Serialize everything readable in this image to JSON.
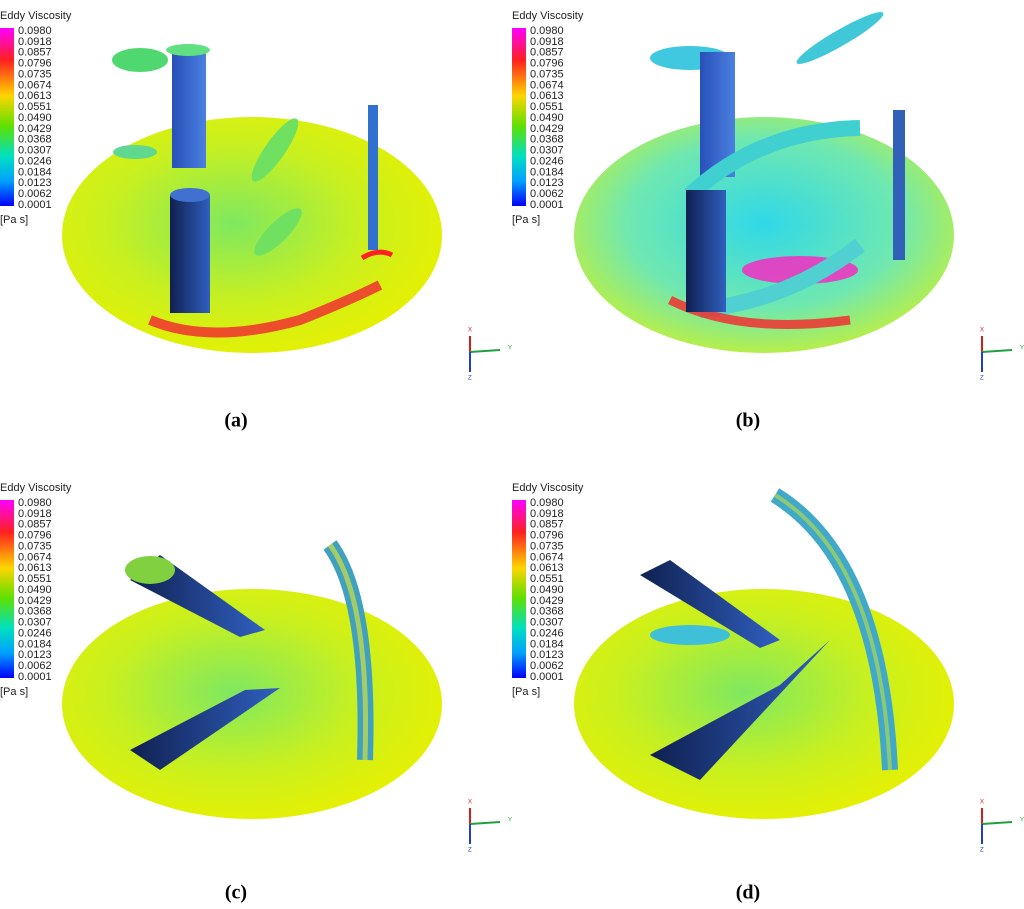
{
  "panels": [
    {
      "legend": {
        "title": "Eddy Viscosity",
        "labels": [
          "0.0980",
          "0.0918",
          "0.0857",
          "0.0796",
          "0.0735",
          "0.0674",
          "0.0613",
          "0.0551",
          "0.0490",
          "0.0429",
          "0.0368",
          "0.0307",
          "0.0246",
          "0.0184",
          "0.0123",
          "0.0062",
          "0.0001"
        ],
        "unit": "[Pa s]"
      },
      "axes": [
        "X",
        "Y",
        "Z"
      ],
      "caption": "(a)"
    },
    {
      "legend": {
        "title": "Eddy Viscosity",
        "labels": [
          "0.0980",
          "0.0918",
          "0.0857",
          "0.0796",
          "0.0735",
          "0.0674",
          "0.0613",
          "0.0551",
          "0.0490",
          "0.0429",
          "0.0368",
          "0.0307",
          "0.0246",
          "0.0184",
          "0.0123",
          "0.0062",
          "0.0001"
        ],
        "unit": "[Pa s]"
      },
      "axes": [
        "X",
        "Y",
        "Z"
      ],
      "caption": "(b)"
    },
    {
      "legend": {
        "title": "Eddy Viscosity",
        "labels": [
          "0.0980",
          "0.0918",
          "0.0857",
          "0.0796",
          "0.0735",
          "0.0674",
          "0.0613",
          "0.0551",
          "0.0490",
          "0.0429",
          "0.0368",
          "0.0307",
          "0.0246",
          "0.0184",
          "0.0123",
          "0.0062",
          "0.0001"
        ],
        "unit": "[Pa s]"
      },
      "axes": [
        "X",
        "Y",
        "Z"
      ],
      "caption": "(c)"
    },
    {
      "legend": {
        "title": "Eddy Viscosity",
        "labels": [
          "0.0980",
          "0.0918",
          "0.0857",
          "0.0796",
          "0.0735",
          "0.0674",
          "0.0613",
          "0.0551",
          "0.0490",
          "0.0429",
          "0.0368",
          "0.0307",
          "0.0246",
          "0.0184",
          "0.0123",
          "0.0062",
          "0.0001"
        ],
        "unit": "[Pa s]"
      },
      "axes": [
        "X",
        "Y",
        "Z"
      ],
      "caption": "(d)"
    }
  ]
}
